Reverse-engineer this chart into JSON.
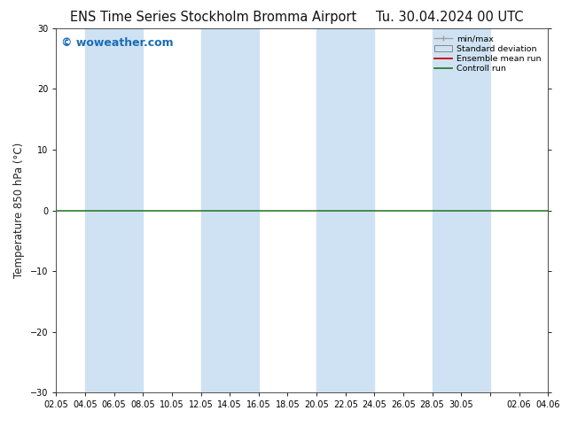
{
  "title_left": "ENS Time Series Stockholm Bromma Airport",
  "title_right": "Tu. 30.04.2024 00 UTC",
  "ylabel": "Temperature 850 hPa (°C)",
  "ylim": [
    -30,
    30
  ],
  "yticks": [
    -30,
    -20,
    -10,
    0,
    10,
    20,
    30
  ],
  "background_color": "#ffffff",
  "plot_bg_color": "#ffffff",
  "watermark": "© woweather.com",
  "watermark_color": "#1a6eb5",
  "zero_line_color": "#2e7d32",
  "band_color": "#cfe2f3",
  "x_tick_labels": [
    "02.05",
    "04.05",
    "06.05",
    "08.05",
    "10.05",
    "12.05",
    "14.05",
    "16.05",
    "18.05",
    "20.05",
    "22.05",
    "24.05",
    "26.05",
    "28.05",
    "30.05",
    "",
    "02.06",
    "04.06"
  ],
  "n_ticks": 18,
  "band_ranges": [
    [
      1,
      3
    ],
    [
      5,
      7
    ],
    [
      9,
      11
    ],
    [
      13,
      15
    ],
    [
      17,
      18
    ]
  ],
  "legend_labels": [
    "min/max",
    "Standard deviation",
    "Ensemble mean run",
    "Controll run"
  ],
  "legend_colors_line": [
    "#a0a0a0",
    "#a0a0a0",
    "#cc0000",
    "#2e7d32"
  ],
  "title_fontsize": 10.5,
  "tick_fontsize": 7,
  "ylabel_fontsize": 8.5,
  "watermark_fontsize": 9,
  "spine_color": "#333333"
}
